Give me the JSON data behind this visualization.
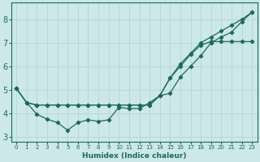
{
  "xlabel": "Humidex (Indice chaleur)",
  "xlim": [
    -0.5,
    23.5
  ],
  "ylim": [
    2.8,
    8.7
  ],
  "background_color": "#cce8e8",
  "grid_color": "#b8d8d8",
  "line_color": "#1a6b5a",
  "xticks": [
    0,
    1,
    2,
    3,
    4,
    5,
    6,
    7,
    8,
    9,
    10,
    11,
    12,
    13,
    14,
    15,
    16,
    17,
    18,
    19,
    20,
    21,
    22,
    23
  ],
  "yticks": [
    3,
    4,
    5,
    6,
    7,
    8
  ],
  "series": [
    [
      5.05,
      4.45,
      3.95,
      3.75,
      3.6,
      3.28,
      3.6,
      3.72,
      3.65,
      3.72,
      4.25,
      4.2,
      4.2,
      4.45,
      4.75,
      4.85,
      5.55,
      6.0,
      6.45,
      7.0,
      7.25,
      7.45,
      7.9,
      8.3
    ],
    [
      5.05,
      4.45,
      4.35,
      4.35,
      4.35,
      4.35,
      4.35,
      4.35,
      4.35,
      4.35,
      4.35,
      4.35,
      4.35,
      4.35,
      4.75,
      5.5,
      6.0,
      6.5,
      6.9,
      7.05,
      7.05,
      7.05,
      7.05,
      7.05
    ],
    [
      5.05,
      4.45,
      4.35,
      4.35,
      4.35,
      4.35,
      4.35,
      4.35,
      4.35,
      4.35,
      4.35,
      4.35,
      4.35,
      4.35,
      4.75,
      5.5,
      6.1,
      6.55,
      7.0,
      7.25,
      7.5,
      7.75,
      8.0,
      8.3
    ]
  ]
}
